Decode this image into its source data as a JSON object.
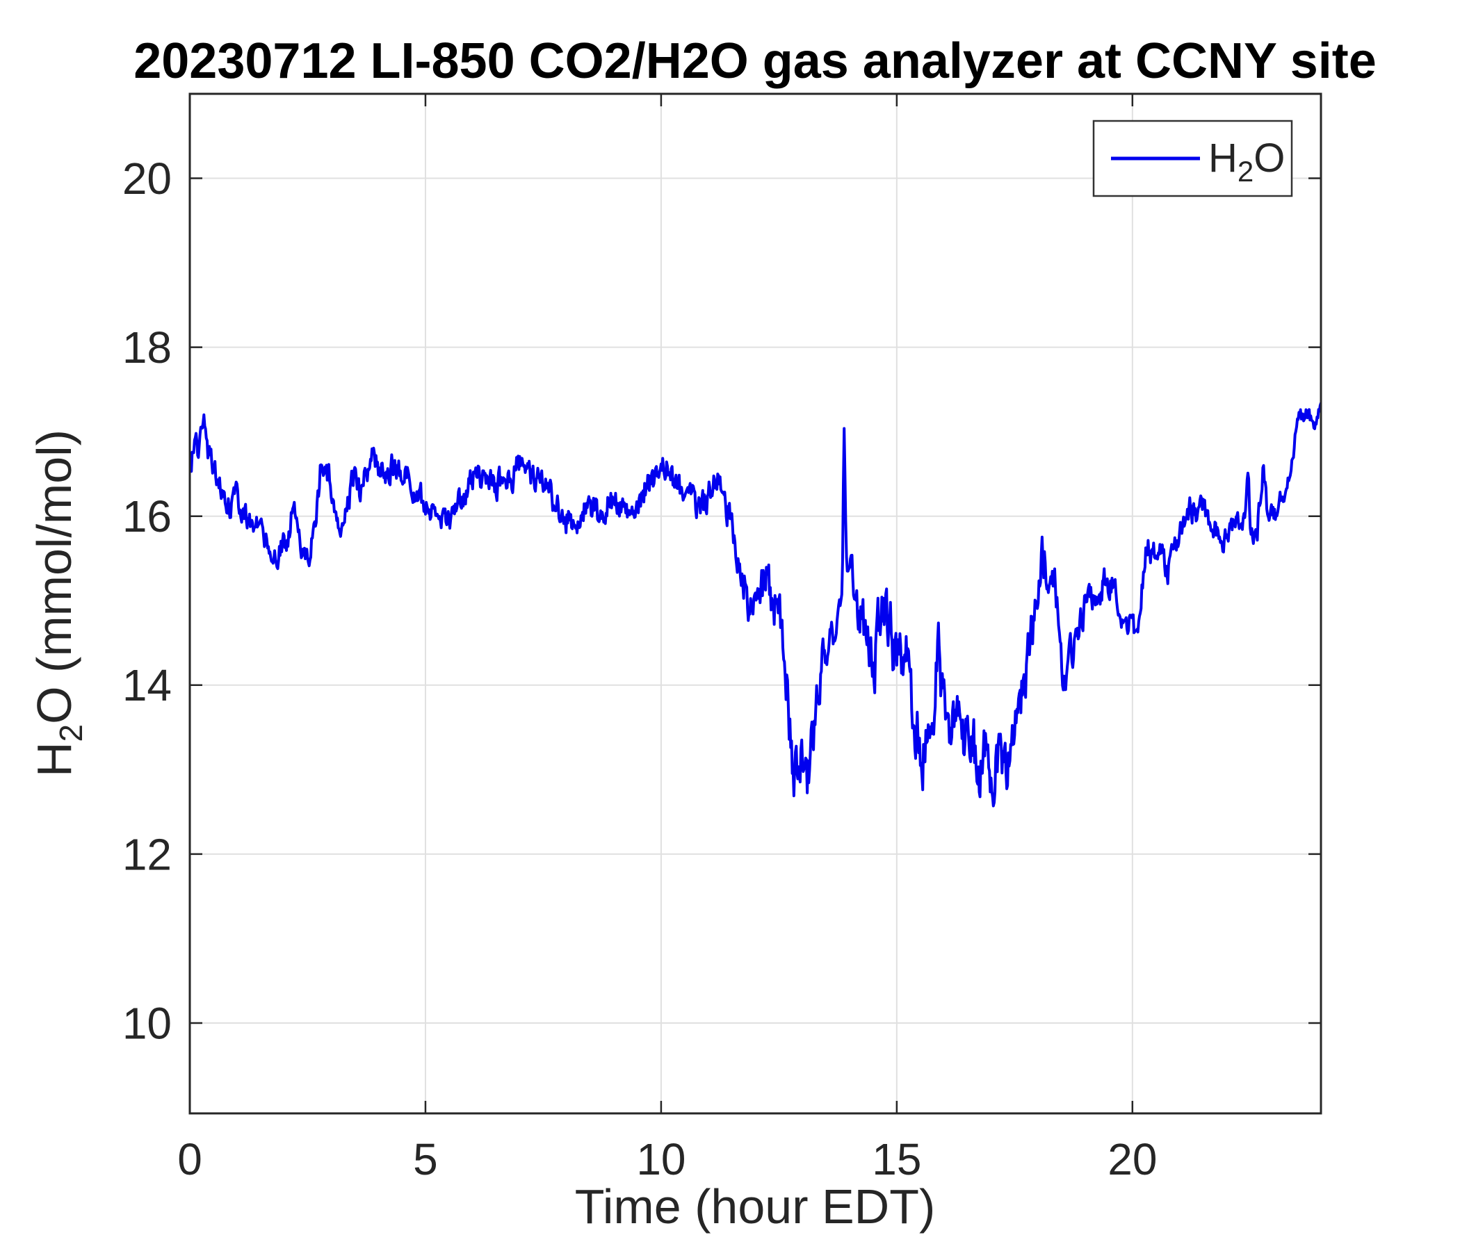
{
  "figure": {
    "title": "20230712 LI-850 CO2/H2O gas analyzer at CCNY site",
    "background": "#FFFFFF"
  },
  "colors": {
    "series_blue": "#0000EE",
    "axis": "#262626",
    "grid": "#E0E0E0",
    "text": "#262626",
    "title_text": "#000000",
    "legend_border": "#333333"
  },
  "legend": {
    "position": "top-right",
    "label_main": "H",
    "label_sub": "2",
    "label_tail": "O"
  },
  "chart_data": {
    "type": "line",
    "title": "20230712 LI-850 CO2/H2O gas analyzer at CCNY site",
    "xlabel": "Time (hour EDT)",
    "ylabel": "H_2O (mmol/mol)",
    "ylabel_parts": {
      "main": "H",
      "sub": "2",
      "tail": "O (mmol/mol)"
    },
    "xlim": [
      0,
      24
    ],
    "ylim": [
      8.93,
      21.0
    ],
    "x_ticks": [
      0,
      5,
      10,
      15,
      20
    ],
    "y_ticks": [
      10,
      12,
      14,
      16,
      18,
      20
    ],
    "grid": true,
    "legend_position": "top-right",
    "series": [
      {
        "name": "H2O",
        "units": "mmol/mol",
        "color": "#0000EE",
        "line_width": 4,
        "sampling_per_hour": 60,
        "mean_anchors": [
          [
            0,
            16.5
          ],
          [
            0.1,
            17.0
          ],
          [
            0.18,
            16.7
          ],
          [
            0.28,
            17.2
          ],
          [
            0.4,
            16.7
          ],
          [
            0.55,
            16.5
          ],
          [
            0.7,
            16.35
          ],
          [
            0.85,
            16.15
          ],
          [
            0.95,
            16.3
          ],
          [
            1.1,
            16.0
          ],
          [
            1.3,
            15.95
          ],
          [
            1.5,
            15.85
          ],
          [
            1.7,
            15.7
          ],
          [
            1.9,
            15.6
          ],
          [
            2.05,
            15.65
          ],
          [
            2.18,
            16.1
          ],
          [
            2.22,
            16.2
          ],
          [
            2.3,
            15.7
          ],
          [
            2.42,
            15.55
          ],
          [
            2.55,
            15.6
          ],
          [
            2.68,
            16.0
          ],
          [
            2.78,
            16.6
          ],
          [
            2.85,
            16.55
          ],
          [
            2.95,
            16.45
          ],
          [
            3.05,
            16.2
          ],
          [
            3.17,
            15.85
          ],
          [
            3.3,
            16.1
          ],
          [
            3.42,
            16.3
          ],
          [
            3.48,
            16.5
          ],
          [
            3.6,
            16.3
          ],
          [
            3.75,
            16.5
          ],
          [
            3.87,
            16.75
          ],
          [
            4.0,
            16.55
          ],
          [
            4.15,
            16.5
          ],
          [
            4.3,
            16.6
          ],
          [
            4.45,
            16.55
          ],
          [
            4.6,
            16.45
          ],
          [
            4.75,
            16.35
          ],
          [
            4.9,
            16.2
          ],
          [
            5.05,
            16.05
          ],
          [
            5.2,
            16.1
          ],
          [
            5.35,
            15.95
          ],
          [
            5.5,
            15.9
          ],
          [
            5.65,
            16.05
          ],
          [
            5.8,
            16.25
          ],
          [
            5.95,
            16.4
          ],
          [
            6.1,
            16.5
          ],
          [
            6.25,
            16.45
          ],
          [
            6.4,
            16.35
          ],
          [
            6.55,
            16.4
          ],
          [
            6.7,
            16.45
          ],
          [
            6.85,
            16.5
          ],
          [
            7.0,
            16.6
          ],
          [
            7.15,
            16.55
          ],
          [
            7.3,
            16.5
          ],
          [
            7.45,
            16.4
          ],
          [
            7.6,
            16.25
          ],
          [
            7.75,
            16.15
          ],
          [
            7.9,
            16.0
          ],
          [
            8.05,
            15.95
          ],
          [
            8.2,
            15.9
          ],
          [
            8.35,
            16.05
          ],
          [
            8.5,
            16.1
          ],
          [
            8.65,
            16.0
          ],
          [
            8.8,
            16.1
          ],
          [
            8.95,
            16.2
          ],
          [
            9.1,
            16.2
          ],
          [
            9.25,
            16.05
          ],
          [
            9.4,
            16.0
          ],
          [
            9.55,
            16.2
          ],
          [
            9.7,
            16.35
          ],
          [
            9.85,
            16.45
          ],
          [
            10.0,
            16.55
          ],
          [
            10.1,
            16.6
          ],
          [
            10.25,
            16.4
          ],
          [
            10.4,
            16.3
          ],
          [
            10.55,
            16.25
          ],
          [
            10.7,
            16.15
          ],
          [
            10.85,
            16.1
          ],
          [
            11.0,
            16.2
          ],
          [
            11.15,
            16.4
          ],
          [
            11.3,
            16.4
          ],
          [
            11.45,
            16.0
          ],
          [
            11.6,
            15.6
          ],
          [
            11.75,
            15.25
          ],
          [
            11.9,
            15.0
          ],
          [
            12.05,
            15.1
          ],
          [
            12.2,
            15.3
          ],
          [
            12.35,
            15.0
          ],
          [
            12.5,
            15.1
          ],
          [
            12.6,
            14.6
          ],
          [
            12.7,
            13.9
          ],
          [
            12.8,
            12.75
          ],
          [
            12.9,
            12.85
          ],
          [
            13.0,
            13.1
          ],
          [
            13.1,
            12.9
          ],
          [
            13.2,
            13.3
          ],
          [
            13.3,
            13.9
          ],
          [
            13.4,
            14.2
          ],
          [
            13.5,
            14.5
          ],
          [
            13.6,
            14.65
          ],
          [
            13.7,
            14.5
          ],
          [
            13.8,
            14.85
          ],
          [
            13.84,
            14.9
          ],
          [
            13.88,
            17.05
          ],
          [
            13.93,
            15.5
          ],
          [
            14.1,
            15.1
          ],
          [
            14.25,
            14.8
          ],
          [
            14.4,
            14.55
          ],
          [
            14.5,
            14.2
          ],
          [
            14.62,
            14.65
          ],
          [
            14.75,
            15.0
          ],
          [
            14.9,
            14.5
          ],
          [
            15.0,
            14.3
          ],
          [
            15.12,
            14.4
          ],
          [
            15.2,
            14.6
          ],
          [
            15.3,
            13.9
          ],
          [
            15.42,
            13.4
          ],
          [
            15.55,
            13.1
          ],
          [
            15.7,
            13.55
          ],
          [
            15.82,
            14.0
          ],
          [
            15.88,
            14.3
          ],
          [
            16.0,
            13.7
          ],
          [
            16.15,
            13.45
          ],
          [
            16.3,
            13.5
          ],
          [
            16.45,
            13.4
          ],
          [
            16.6,
            13.35
          ],
          [
            16.75,
            12.95
          ],
          [
            16.9,
            13.2
          ],
          [
            17.0,
            12.8
          ],
          [
            17.1,
            13.0
          ],
          [
            17.25,
            13.1
          ],
          [
            17.4,
            13.1
          ],
          [
            17.5,
            13.3
          ],
          [
            17.6,
            13.8
          ],
          [
            17.75,
            14.2
          ],
          [
            17.9,
            14.7
          ],
          [
            18.0,
            15.1
          ],
          [
            18.1,
            15.55
          ],
          [
            18.2,
            15.4
          ],
          [
            18.3,
            15.35
          ],
          [
            18.42,
            15.0
          ],
          [
            18.55,
            14.05
          ],
          [
            18.65,
            14.3
          ],
          [
            18.8,
            14.55
          ],
          [
            18.95,
            14.9
          ],
          [
            19.1,
            15.05
          ],
          [
            19.25,
            15.1
          ],
          [
            19.4,
            15.2
          ],
          [
            19.55,
            15.2
          ],
          [
            19.7,
            15.0
          ],
          [
            19.85,
            14.75
          ],
          [
            20.0,
            14.7
          ],
          [
            20.1,
            14.55
          ],
          [
            20.2,
            15.2
          ],
          [
            20.3,
            15.65
          ],
          [
            20.45,
            15.55
          ],
          [
            20.6,
            15.6
          ],
          [
            20.75,
            15.3
          ],
          [
            20.9,
            15.65
          ],
          [
            21.05,
            15.9
          ],
          [
            21.2,
            16.1
          ],
          [
            21.35,
            16.05
          ],
          [
            21.5,
            16.1
          ],
          [
            21.65,
            15.95
          ],
          [
            21.8,
            15.85
          ],
          [
            21.95,
            15.7
          ],
          [
            22.1,
            15.85
          ],
          [
            22.25,
            15.9
          ],
          [
            22.4,
            16.0
          ],
          [
            22.45,
            16.45
          ],
          [
            22.52,
            15.8
          ],
          [
            22.65,
            15.85
          ],
          [
            22.78,
            16.7
          ],
          [
            22.85,
            16.1
          ],
          [
            22.95,
            16.05
          ],
          [
            23.05,
            16.0
          ],
          [
            23.15,
            16.2
          ],
          [
            23.25,
            16.35
          ],
          [
            23.35,
            16.5
          ],
          [
            23.45,
            16.9
          ],
          [
            23.55,
            17.15
          ],
          [
            23.65,
            17.2
          ],
          [
            23.75,
            17.25
          ],
          [
            23.85,
            17.05
          ],
          [
            23.95,
            17.2
          ],
          [
            24,
            17.3
          ]
        ],
        "noise": {
          "ar": 0.5,
          "seed": 20230712,
          "amplitude_anchors": [
            [
              0,
              0.13
            ],
            [
              11,
              0.15
            ],
            [
              11.8,
              0.22
            ],
            [
              12.4,
              0.28
            ],
            [
              13,
              0.3
            ],
            [
              13.82,
              0.12
            ],
            [
              13.94,
              0.12
            ],
            [
              14.2,
              0.3
            ],
            [
              15,
              0.32
            ],
            [
              16,
              0.32
            ],
            [
              17,
              0.3
            ],
            [
              18,
              0.25
            ],
            [
              18.8,
              0.18
            ],
            [
              19.5,
              0.15
            ],
            [
              21,
              0.13
            ],
            [
              22.5,
              0.12
            ],
            [
              23.2,
              0.1
            ],
            [
              24,
              0.08
            ]
          ]
        }
      }
    ]
  }
}
